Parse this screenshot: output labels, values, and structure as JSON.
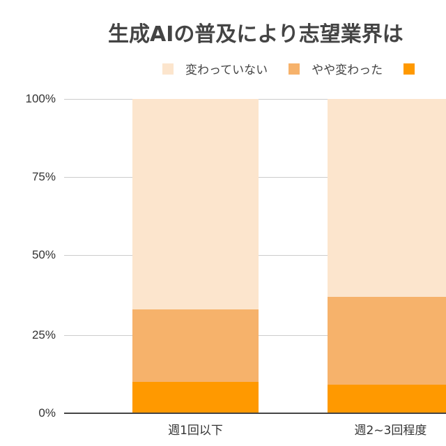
{
  "chart_data": {
    "type": "bar",
    "stacked": true,
    "normalized": true,
    "title": "生成AIの普及により志望業界は",
    "xlabel": "",
    "ylabel": "",
    "ylim": [
      0,
      100
    ],
    "yticks": [
      "0%",
      "25%",
      "50%",
      "75%",
      "100%"
    ],
    "grid": true,
    "legend_position": "top",
    "categories": [
      "週1回以下",
      "週2~3回程度"
    ],
    "series": [
      {
        "name": "変わっていない",
        "color": "#fce5cd",
        "values": [
          67,
          63
        ]
      },
      {
        "name": "やや変わった",
        "color": "#f6b26b",
        "values": [
          23,
          28
        ]
      },
      {
        "name": "",
        "color": "#ff9900",
        "values": [
          10,
          9
        ]
      }
    ]
  },
  "title": "生成AIの普及により志望業界は",
  "legend": [
    {
      "label": "変わっていない",
      "color": "#fce5cd"
    },
    {
      "label": "やや変わった",
      "color": "#f6b26b"
    },
    {
      "label": "",
      "color": "#ff9900"
    }
  ],
  "yaxis": {
    "ticks": [
      {
        "label": "100%",
        "value": 100
      },
      {
        "label": "75%",
        "value": 75
      },
      {
        "label": "50%",
        "value": 50
      },
      {
        "label": "25%",
        "value": 25
      },
      {
        "label": "0%",
        "value": 0
      }
    ]
  },
  "xaxis": {
    "labels": [
      "週1回以下",
      "週2~3回程度"
    ]
  }
}
